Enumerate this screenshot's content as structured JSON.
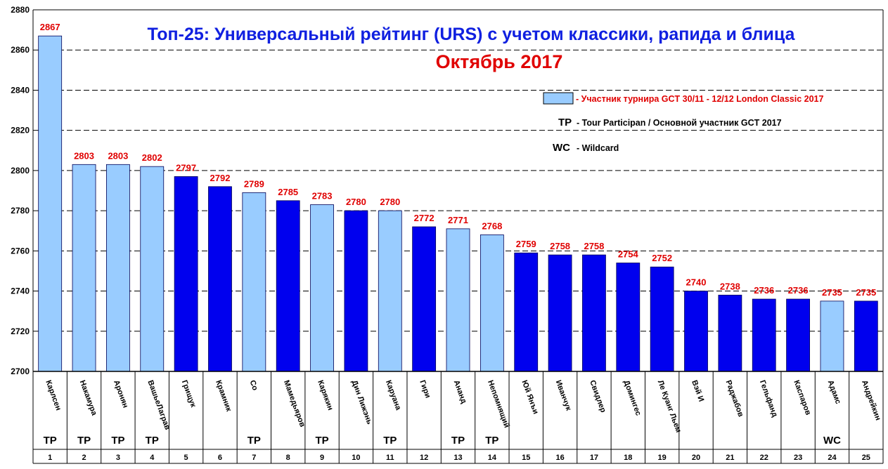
{
  "chart_data": {
    "type": "bar",
    "title": "Топ-25: Универсальный рейтинг (URS) с учетом классики, рапида и блица",
    "subtitle": "Октябрь 2017",
    "ylim": [
      2700,
      2880
    ],
    "yticks": [
      2700,
      2720,
      2740,
      2760,
      2780,
      2800,
      2820,
      2840,
      2860,
      2880
    ],
    "grid": true,
    "legend": {
      "placement": "top-right",
      "marker_label": "- Участник турнира GCT 30/11 - 12/12 London Classic 2017",
      "tp_key": "TP",
      "tp_text": "- Tour Participan / Основной участник GCT 2017",
      "wc_key": "WC",
      "wc_text": "- Wildcard"
    },
    "colors": {
      "london": "#99ccff",
      "other": "#0000ee",
      "value_label": "#e00000",
      "title": "#1020e0"
    },
    "categories": [
      "Карлсен",
      "Накамура",
      "Аронян",
      "ВашьеЛаграв",
      "Грищук",
      "Крамник",
      "Со",
      "Мамедьяров",
      "Карякин",
      "Дин Лижэнь",
      "Каруана",
      "Гири",
      "Ананд",
      "Непомнящий",
      "Юй Янъи",
      "Иванчук",
      "Свидлер",
      "Домингес",
      "Ле Куанг Льем",
      "Вэй И",
      "Раджабов",
      "Гельфанд",
      "Каспаров",
      "Адамс",
      "Андрейкин"
    ],
    "values": [
      2867,
      2803,
      2803,
      2802,
      2797,
      2792,
      2789,
      2785,
      2783,
      2780,
      2780,
      2772,
      2771,
      2768,
      2759,
      2758,
      2758,
      2754,
      2752,
      2740,
      2738,
      2736,
      2736,
      2735,
      2735
    ],
    "london_participant": [
      true,
      true,
      true,
      true,
      false,
      false,
      true,
      false,
      true,
      false,
      true,
      false,
      true,
      true,
      false,
      false,
      false,
      false,
      false,
      false,
      false,
      false,
      false,
      true,
      false
    ],
    "status": [
      "TP",
      "TP",
      "TP",
      "TP",
      "",
      "",
      "TP",
      "",
      "TP",
      "",
      "TP",
      "",
      "TP",
      "TP",
      "",
      "",
      "",
      "",
      "",
      "",
      "",
      "",
      "",
      "WC",
      ""
    ],
    "ranks": [
      "1",
      "2",
      "3",
      "4",
      "5",
      "6",
      "7",
      "8",
      "9",
      "10",
      "11",
      "12",
      "13",
      "14",
      "15",
      "16",
      "17",
      "18",
      "19",
      "20",
      "21",
      "22",
      "23",
      "24",
      "25"
    ]
  }
}
